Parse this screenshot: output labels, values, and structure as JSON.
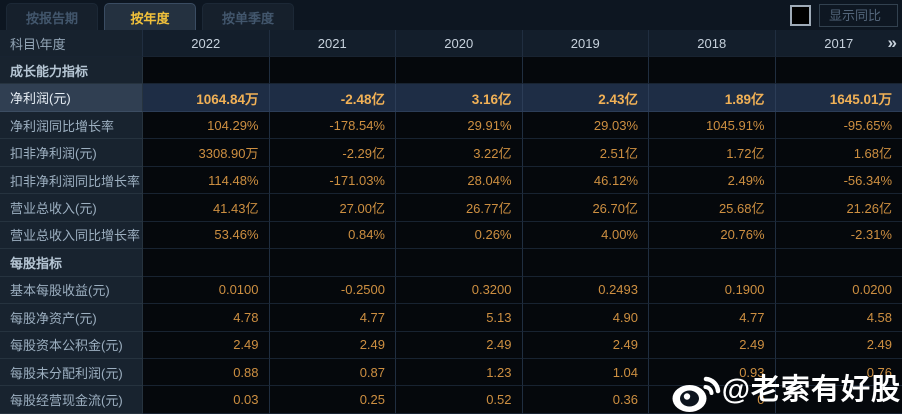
{
  "tabs": [
    {
      "label": "按报告期",
      "active": false
    },
    {
      "label": "按年度",
      "active": true
    },
    {
      "label": "按单季度",
      "active": false
    }
  ],
  "controls": {
    "show_yoy_label": "显示同比",
    "checkbox_checked": false
  },
  "table": {
    "corner_header": "科目\\年度",
    "years": [
      "2022",
      "2021",
      "2020",
      "2019",
      "2018",
      "2017"
    ],
    "more_years_icon": "»",
    "rows": [
      {
        "label": "成长能力指标",
        "type": "section",
        "highlight": false,
        "values": [
          "",
          "",
          "",
          "",
          "",
          ""
        ]
      },
      {
        "label": "净利润(元)",
        "type": "data",
        "highlight": true,
        "values": [
          "1064.84万",
          "-2.48亿",
          "3.16亿",
          "2.43亿",
          "1.89亿",
          "1645.01万"
        ]
      },
      {
        "label": "净利润同比增长率",
        "type": "data",
        "highlight": false,
        "values": [
          "104.29%",
          "-178.54%",
          "29.91%",
          "29.03%",
          "1045.91%",
          "-95.65%"
        ]
      },
      {
        "label": "扣非净利润(元)",
        "type": "data",
        "highlight": false,
        "values": [
          "3308.90万",
          "-2.29亿",
          "3.22亿",
          "2.51亿",
          "1.72亿",
          "1.68亿"
        ]
      },
      {
        "label": "扣非净利润同比增长率",
        "type": "data",
        "highlight": false,
        "values": [
          "114.48%",
          "-171.03%",
          "28.04%",
          "46.12%",
          "2.49%",
          "-56.34%"
        ]
      },
      {
        "label": "营业总收入(元)",
        "type": "data",
        "highlight": false,
        "values": [
          "41.43亿",
          "27.00亿",
          "26.77亿",
          "26.70亿",
          "25.68亿",
          "21.26亿"
        ]
      },
      {
        "label": "营业总收入同比增长率",
        "type": "data",
        "highlight": false,
        "values": [
          "53.46%",
          "0.84%",
          "0.26%",
          "4.00%",
          "20.76%",
          "-2.31%"
        ]
      },
      {
        "label": "每股指标",
        "type": "section",
        "highlight": false,
        "values": [
          "",
          "",
          "",
          "",
          "",
          ""
        ]
      },
      {
        "label": "基本每股收益(元)",
        "type": "data",
        "highlight": false,
        "values": [
          "0.0100",
          "-0.2500",
          "0.3200",
          "0.2493",
          "0.1900",
          "0.0200"
        ]
      },
      {
        "label": "每股净资产(元)",
        "type": "data",
        "highlight": false,
        "values": [
          "4.78",
          "4.77",
          "5.13",
          "4.90",
          "4.77",
          "4.58"
        ]
      },
      {
        "label": "每股资本公积金(元)",
        "type": "data",
        "highlight": false,
        "values": [
          "2.49",
          "2.49",
          "2.49",
          "2.49",
          "2.49",
          "2.49"
        ]
      },
      {
        "label": "每股未分配利润(元)",
        "type": "data",
        "highlight": false,
        "values": [
          "0.88",
          "0.87",
          "1.23",
          "1.04",
          "0.93",
          "0.76"
        ]
      },
      {
        "label": "每股经营现金流(元)",
        "type": "data",
        "highlight": false,
        "values": [
          "0.03",
          "0.25",
          "0.52",
          "0.36",
          "0",
          ""
        ]
      }
    ]
  },
  "watermark": {
    "icon": "weibo-icon",
    "text": "@老索有好股"
  },
  "colors": {
    "accent_yellow": "#f1c13b",
    "value_orange": "#cd8f41",
    "highlight_value": "#f1b156",
    "highlight_row_bg": "#1e2d45",
    "background": "#0c141e"
  }
}
